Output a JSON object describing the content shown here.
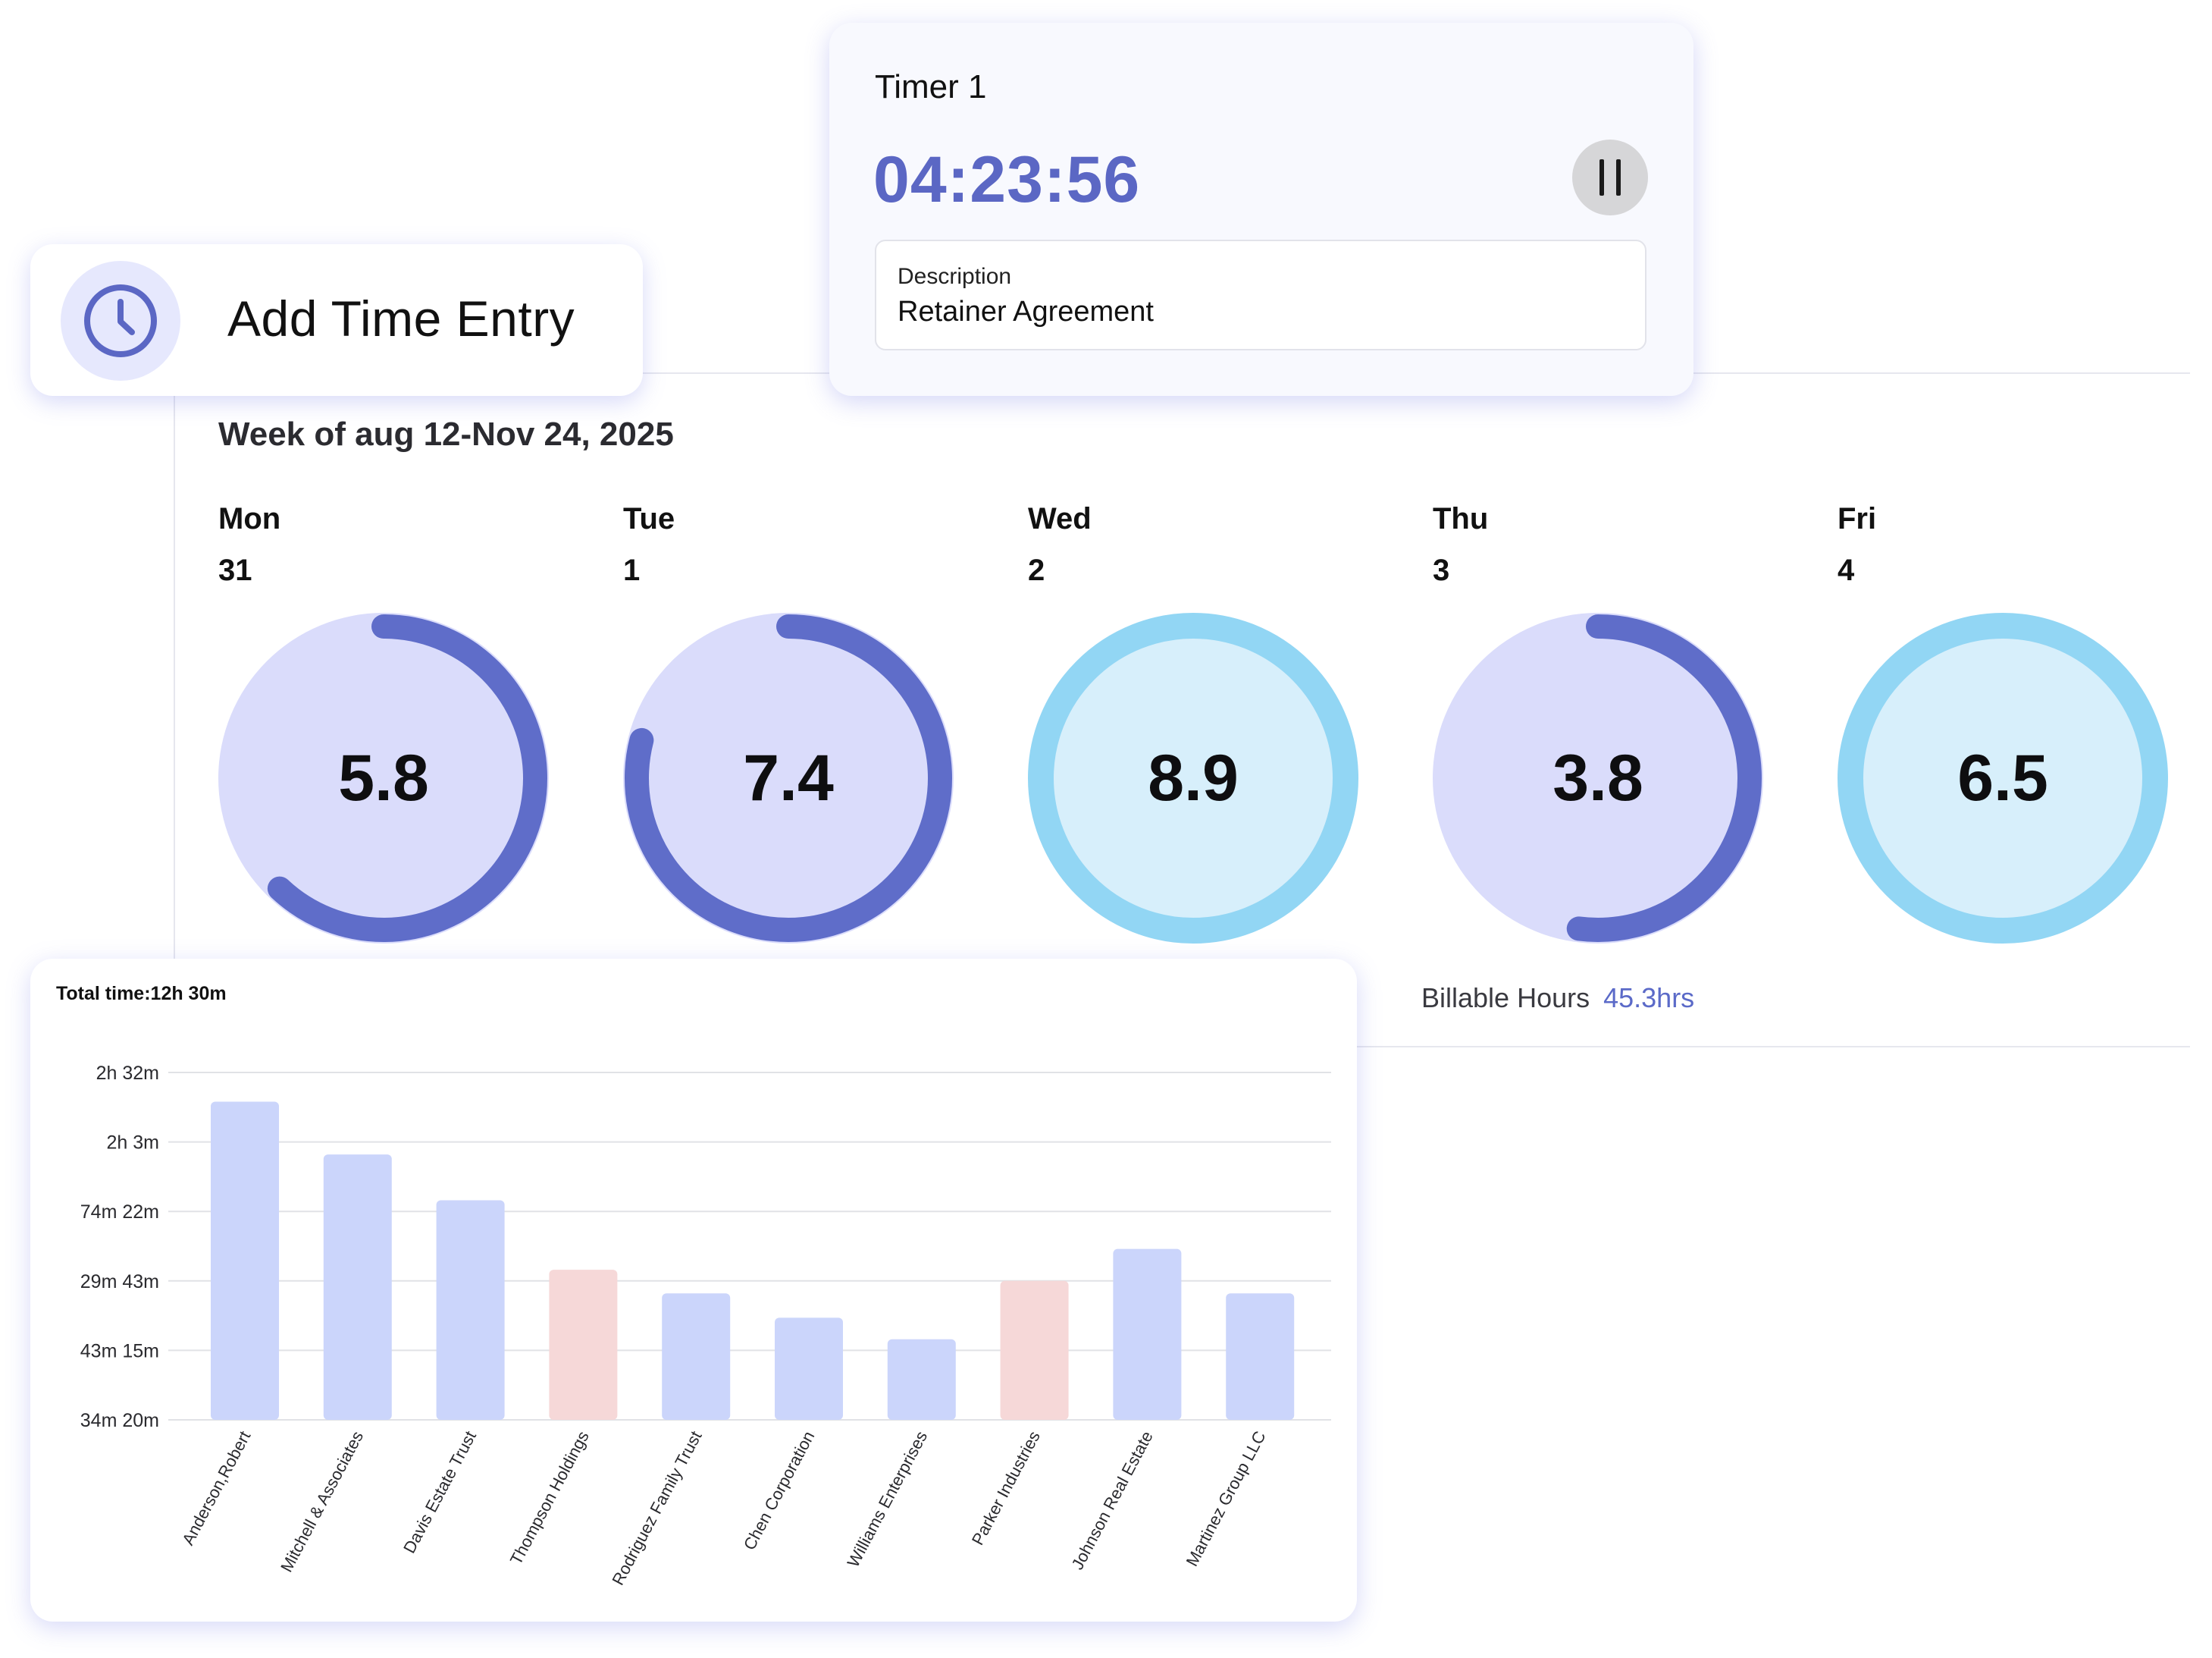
{
  "add_entry": {
    "label": "Add Time Entry",
    "icon": "clock-icon"
  },
  "timer": {
    "title": "Timer 1",
    "time": "04:23:56",
    "pause_icon": "pause-icon",
    "description_label": "Description",
    "description_value": "Retainer Agreement"
  },
  "week": {
    "title": "Week of aug 12-Nov 24, 2025",
    "days": [
      {
        "name": "Mon",
        "date": "31",
        "value": "5.8",
        "progress": 0.62,
        "style": "indigo"
      },
      {
        "name": "Tue",
        "date": "1",
        "value": "7.4",
        "progress": 0.79,
        "style": "indigo"
      },
      {
        "name": "Wed",
        "date": "2",
        "value": "8.9",
        "progress": 1.0,
        "style": "sky"
      },
      {
        "name": "Thu",
        "date": "3",
        "value": "3.8",
        "progress": 0.52,
        "style": "indigo"
      },
      {
        "name": "Fri",
        "date": "4",
        "value": "6.5",
        "progress": 1.0,
        "style": "sky"
      }
    ],
    "billable_label": "Billable Hours",
    "billable_value": "45.3hrs"
  },
  "colors": {
    "indigo_ring": "#5f6dc9",
    "indigo_fill": "#dadcfb",
    "sky_ring": "#92d6f4",
    "sky_fill": "#d7effb",
    "bar_blue": "#cbd5fb",
    "bar_pink": "#f6d8d8"
  },
  "chart_data": {
    "type": "bar",
    "title": "Total time:12h 30m",
    "y_tick_labels": [
      "2h 32m",
      "2h 3m",
      "74m 22m",
      "29m 43m",
      "43m 15m",
      "34m 20m"
    ],
    "y_scale": [
      0,
      5
    ],
    "categories": [
      "Anderson,Robert",
      "Mitchell & Associates",
      "Davis Estate Trust",
      "Thompson Holdings",
      "Rodriguez Family Trust",
      "Chen Corporation",
      "Williams Enterprises",
      "Parker Industries",
      "Johnson Real Estate",
      "Martinez Group LLC"
    ],
    "values": [
      4.58,
      3.82,
      3.16,
      2.16,
      1.82,
      1.47,
      1.16,
      2.0,
      2.46,
      1.82
    ],
    "highlighted": [
      false,
      false,
      false,
      true,
      false,
      false,
      false,
      true,
      false,
      false
    ],
    "grid": true
  }
}
